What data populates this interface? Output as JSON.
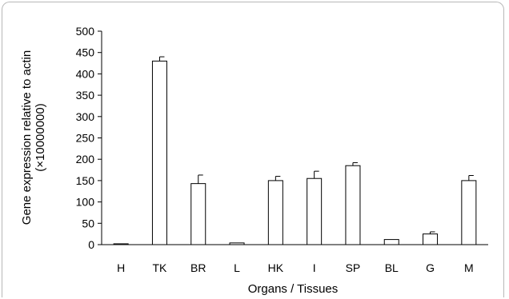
{
  "chart_data": {
    "type": "bar",
    "xlabel": "Organs / Tissues",
    "ylabel": "Gene expression relative to actin",
    "ylabel_unit": "(×10000000)",
    "ylim": [
      0,
      500
    ],
    "yticks": [
      0,
      50,
      100,
      150,
      200,
      250,
      300,
      350,
      400,
      450,
      500
    ],
    "categories": [
      "H",
      "TK",
      "BR",
      "L",
      "HK",
      "I",
      "SP",
      "BL",
      "G",
      "M"
    ],
    "values": [
      2,
      430,
      143,
      4,
      150,
      155,
      185,
      12,
      25,
      150
    ],
    "errors": [
      0,
      10,
      20,
      0,
      10,
      17,
      7,
      0,
      5,
      12
    ],
    "grid": false,
    "legend": "none",
    "colors": {
      "bar_fill": "#ffffff",
      "bar_stroke": "#000000"
    }
  }
}
